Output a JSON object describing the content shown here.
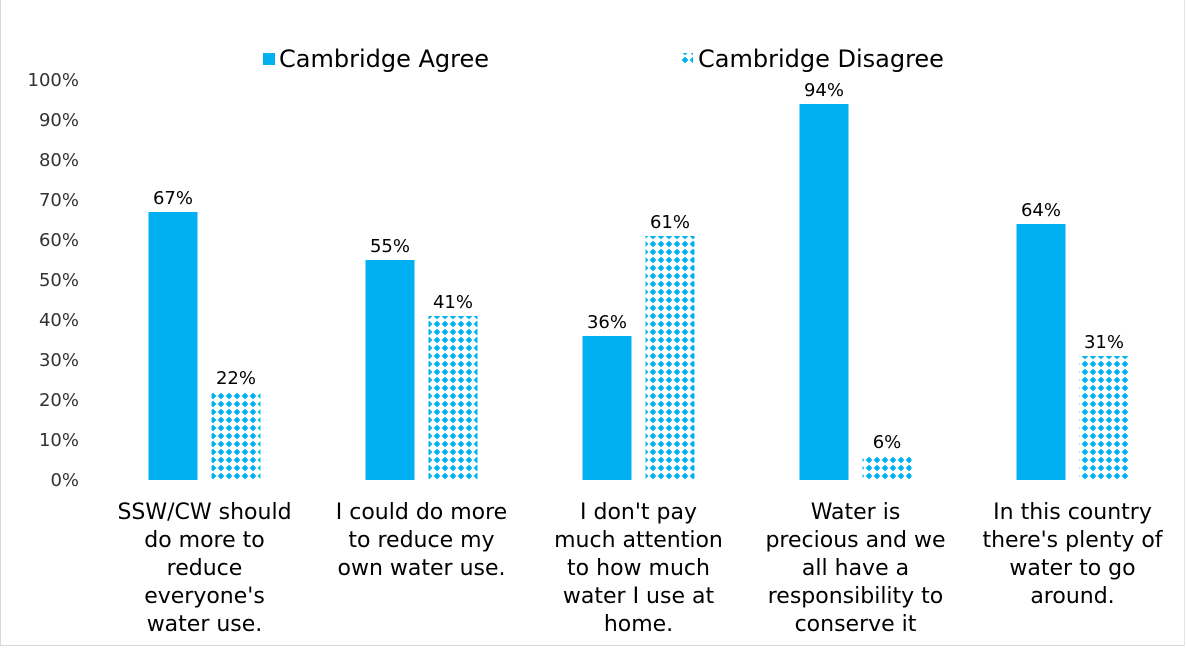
{
  "chart_data": {
    "type": "bar",
    "title": "",
    "xlabel": "",
    "ylabel": "",
    "ylim": [
      0,
      100
    ],
    "yticks": [
      "0%",
      "10%",
      "20%",
      "30%",
      "40%",
      "50%",
      "60%",
      "70%",
      "80%",
      "90%",
      "100%"
    ],
    "grid": false,
    "legend_position": "top",
    "categories": [
      [
        "SSW/CW should",
        "do more to",
        "reduce",
        "everyone's",
        "water use."
      ],
      [
        "I could do more",
        "to reduce my",
        "own water use."
      ],
      [
        "I don't pay",
        "much attention",
        "to how much",
        "water I use at",
        "home."
      ],
      [
        "Water is",
        "precious and we",
        "all have a",
        "responsibility to",
        "conserve it"
      ],
      [
        "In this country",
        "there's plenty of",
        "water to go",
        "around."
      ]
    ],
    "series": [
      {
        "name": "Cambridge Agree",
        "values": [
          67,
          55,
          36,
          94,
          64
        ],
        "labels": [
          "67%",
          "55%",
          "36%",
          "94%",
          "64%"
        ],
        "color": "#00b0f0",
        "fill": "solid"
      },
      {
        "name": "Cambridge Disagree",
        "values": [
          22,
          41,
          61,
          6,
          31
        ],
        "labels": [
          "22%",
          "41%",
          "61%",
          "6%",
          "31%"
        ],
        "color": "#00b0f0",
        "fill": "diamond-pattern"
      }
    ]
  }
}
